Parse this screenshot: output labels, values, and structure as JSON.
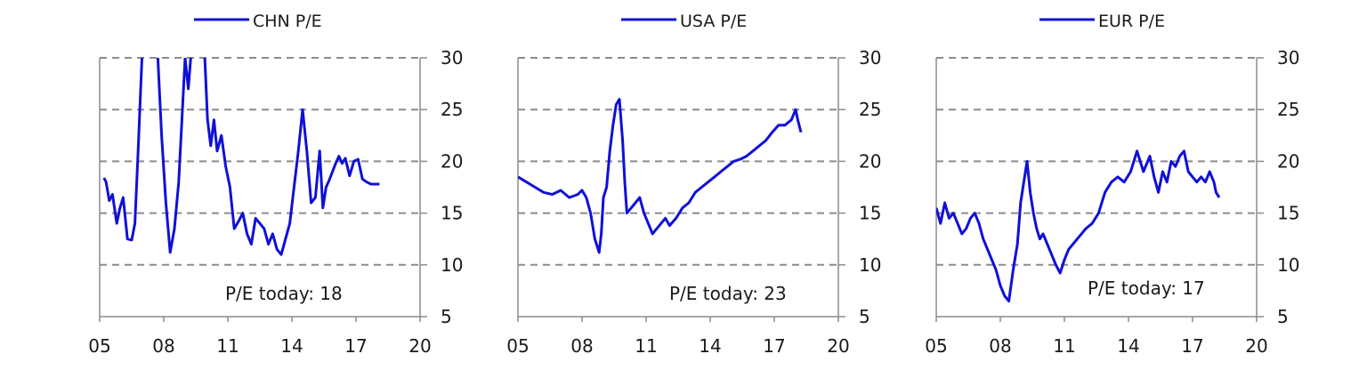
{
  "chart_data": [
    {
      "type": "line",
      "legend": "CHN P/E",
      "annotation": "P/E today: 18",
      "x_ticks": [
        "05",
        "08",
        "11",
        "14",
        "17",
        "20"
      ],
      "x_range": [
        2005,
        2020
      ],
      "y_ticks": [
        "30",
        "25",
        "20",
        "15",
        "10",
        "5"
      ],
      "ylim": [
        5,
        30
      ],
      "y_axis_side": "right",
      "grid": "dashed horizontal",
      "legend_position": "top-center",
      "series": [
        {
          "color": "#1010d8",
          "x": [
            2005.2,
            2005.3,
            2005.45,
            2005.6,
            2005.8,
            2005.95,
            2006.1,
            2006.3,
            2006.5,
            2006.65,
            2006.8,
            2007.0,
            2007.2,
            2007.35,
            2007.5,
            2007.7,
            2007.9,
            2008.1,
            2008.3,
            2008.5,
            2008.7,
            2008.9,
            2009.0,
            2009.15,
            2009.3,
            2009.5,
            2009.7,
            2009.9,
            2010.05,
            2010.2,
            2010.35,
            2010.5,
            2010.7,
            2010.9,
            2011.1,
            2011.3,
            2011.5,
            2011.7,
            2011.9,
            2012.1,
            2012.3,
            2012.5,
            2012.7,
            2012.9,
            2013.1,
            2013.3,
            2013.5,
            2013.7,
            2013.9,
            2014.1,
            2014.3,
            2014.5,
            2014.7,
            2014.9,
            2015.1,
            2015.3,
            2015.45,
            2015.6,
            2015.75,
            2015.9,
            2016.05,
            2016.2,
            2016.35,
            2016.5,
            2016.7,
            2016.9,
            2017.1,
            2017.3,
            2017.5,
            2017.7,
            2017.9,
            2018.1
          ],
          "y": [
            18.4,
            18.0,
            16.2,
            16.8,
            14.0,
            15.5,
            16.5,
            12.5,
            12.4,
            14.0,
            21.0,
            31.0,
            31.0,
            31.0,
            31.0,
            31.0,
            22.5,
            16.0,
            11.2,
            13.5,
            18.0,
            26.0,
            30.0,
            27.0,
            31.0,
            31.0,
            31.0,
            31.0,
            24.0,
            21.5,
            24.0,
            21.0,
            22.5,
            19.5,
            17.5,
            13.5,
            14.2,
            15.0,
            13.0,
            12.0,
            14.5,
            14.0,
            13.5,
            12.0,
            13.0,
            11.5,
            11.0,
            12.5,
            14.0,
            17.5,
            21.0,
            25.0,
            21.0,
            16.0,
            16.5,
            21.0,
            15.5,
            17.5,
            18.2,
            19.0,
            19.8,
            20.5,
            19.8,
            20.3,
            18.6,
            20.0,
            20.2,
            18.3,
            18.0,
            17.8,
            17.8,
            17.8
          ]
        }
      ]
    },
    {
      "type": "line",
      "legend": "USA P/E",
      "annotation": "P/E today: 23",
      "x_ticks": [
        "05",
        "08",
        "11",
        "14",
        "17",
        "20"
      ],
      "x_range": [
        2005,
        2020
      ],
      "y_ticks": [
        "30",
        "25",
        "20",
        "15",
        "10",
        "5"
      ],
      "ylim": [
        5,
        30
      ],
      "y_axis_side": "right",
      "grid": "dashed horizontal",
      "legend_position": "top-center",
      "series": [
        {
          "color": "#1010d8",
          "x": [
            2005.0,
            2005.4,
            2005.8,
            2006.2,
            2006.6,
            2007.0,
            2007.4,
            2007.8,
            2008.0,
            2008.2,
            2008.4,
            2008.6,
            2008.8,
            2008.9,
            2009.0,
            2009.15,
            2009.3,
            2009.45,
            2009.6,
            2009.75,
            2009.9,
            2010.0,
            2010.1,
            2010.3,
            2010.5,
            2010.7,
            2010.9,
            2011.1,
            2011.3,
            2011.5,
            2011.7,
            2011.9,
            2012.1,
            2012.4,
            2012.7,
            2013.0,
            2013.3,
            2013.6,
            2013.9,
            2014.2,
            2014.5,
            2014.8,
            2015.1,
            2015.4,
            2015.7,
            2016.0,
            2016.3,
            2016.6,
            2016.9,
            2017.2,
            2017.5,
            2017.8,
            2018.0,
            2018.1,
            2018.25
          ],
          "y": [
            18.5,
            18.0,
            17.5,
            17.0,
            16.8,
            17.2,
            16.5,
            16.8,
            17.2,
            16.5,
            15.0,
            12.5,
            11.2,
            13.0,
            16.5,
            17.5,
            21.0,
            23.5,
            25.5,
            26.0,
            22.0,
            18.0,
            15.0,
            15.5,
            16.0,
            16.5,
            15.0,
            14.0,
            13.0,
            13.5,
            14.0,
            14.5,
            13.8,
            14.5,
            15.5,
            16.0,
            17.0,
            17.5,
            18.0,
            18.5,
            19.0,
            19.5,
            20.0,
            20.2,
            20.5,
            21.0,
            21.5,
            22.0,
            22.8,
            23.5,
            23.5,
            24.0,
            25.0,
            24.0,
            22.8
          ]
        }
      ]
    },
    {
      "type": "line",
      "legend": "EUR P/E",
      "annotation": "P/E today: 17",
      "x_ticks": [
        "05",
        "08",
        "11",
        "14",
        "17",
        "20"
      ],
      "x_range": [
        2005,
        2020
      ],
      "y_ticks": [
        "30",
        "25",
        "20",
        "15",
        "10",
        "5"
      ],
      "ylim": [
        5,
        30
      ],
      "y_axis_side": "right",
      "grid": "dashed horizontal",
      "legend_position": "top-center",
      "series": [
        {
          "color": "#1010d8",
          "x": [
            2005.0,
            2005.2,
            2005.4,
            2005.6,
            2005.8,
            2006.0,
            2006.2,
            2006.4,
            2006.6,
            2006.8,
            2007.0,
            2007.2,
            2007.4,
            2007.6,
            2007.8,
            2008.0,
            2008.2,
            2008.4,
            2008.6,
            2008.8,
            2008.95,
            2009.1,
            2009.25,
            2009.4,
            2009.55,
            2009.7,
            2009.85,
            2010.0,
            2010.2,
            2010.4,
            2010.6,
            2010.8,
            2011.0,
            2011.2,
            2011.4,
            2011.6,
            2011.8,
            2012.0,
            2012.3,
            2012.6,
            2012.9,
            2013.2,
            2013.5,
            2013.8,
            2014.1,
            2014.4,
            2014.7,
            2015.0,
            2015.2,
            2015.4,
            2015.6,
            2015.8,
            2016.0,
            2016.2,
            2016.4,
            2016.6,
            2016.8,
            2017.0,
            2017.2,
            2017.4,
            2017.6,
            2017.8,
            2018.0,
            2018.1,
            2018.25
          ],
          "y": [
            15.5,
            14.0,
            16.0,
            14.5,
            15.0,
            14.0,
            13.0,
            13.5,
            14.5,
            15.0,
            14.0,
            12.5,
            11.5,
            10.5,
            9.5,
            8.0,
            7.0,
            6.5,
            9.5,
            12.0,
            16.0,
            18.0,
            20.0,
            17.0,
            15.0,
            13.5,
            12.5,
            13.0,
            12.0,
            11.0,
            10.0,
            9.2,
            10.5,
            11.5,
            12.0,
            12.5,
            13.0,
            13.5,
            14.0,
            15.0,
            17.0,
            18.0,
            18.5,
            18.0,
            19.0,
            21.0,
            19.0,
            20.5,
            18.5,
            17.0,
            19.0,
            18.0,
            20.0,
            19.5,
            20.5,
            21.0,
            19.0,
            18.5,
            18.0,
            18.5,
            18.0,
            19.0,
            18.0,
            17.0,
            16.5
          ]
        }
      ]
    }
  ]
}
